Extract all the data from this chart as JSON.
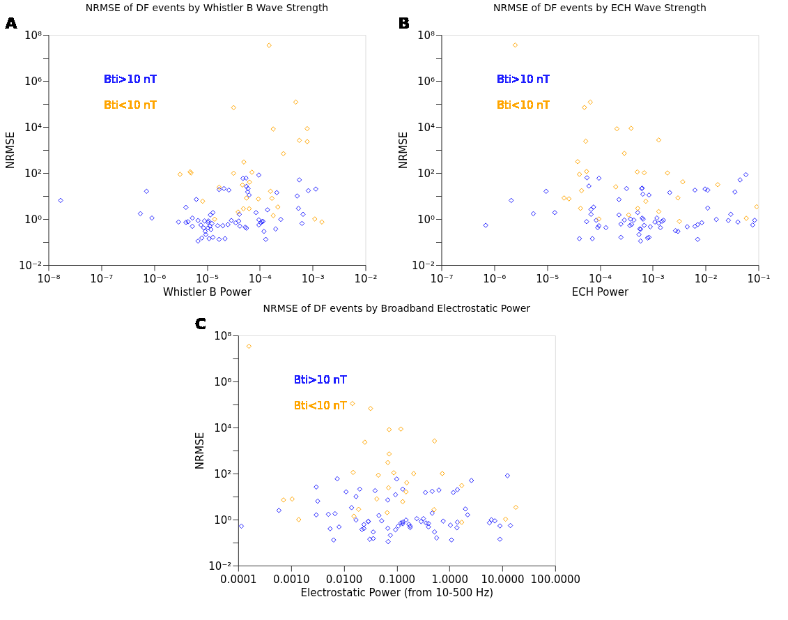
{
  "chart_data": [
    {
      "type": "scatter",
      "title": "NRMSE of DF events by Whistler B Wave Strength",
      "xlabel": "Whistler B Power",
      "ylabel": "NRMSE",
      "annotations": [
        "A"
      ],
      "log": "xy",
      "grid": false,
      "legend": "top left",
      "marker": "diamond",
      "xlim": [
        1e-08,
        0.01
      ],
      "ylim": [
        0.01,
        100000000.0
      ],
      "xticks": [
        {
          "value": 1e-08,
          "label": "10⁻⁸"
        },
        {
          "value": 1e-07,
          "label": "10⁻⁷"
        },
        {
          "value": 1e-06,
          "label": "10⁻⁶"
        },
        {
          "value": 1e-05,
          "label": "10⁻⁵"
        },
        {
          "value": 0.0001,
          "label": "10⁻⁴"
        },
        {
          "value": 0.001,
          "label": "10⁻³"
        },
        {
          "value": 0.01,
          "label": "10⁻²"
        }
      ],
      "yticks": [
        {
          "value": 0.01,
          "label": "10⁻²"
        },
        {
          "value": 0.1,
          "label": null
        },
        {
          "value": 1,
          "label": "10⁰"
        },
        {
          "value": 10,
          "label": null
        },
        {
          "value": 100,
          "label": "10²"
        },
        {
          "value": 1000.0,
          "label": null
        },
        {
          "value": 10000.0,
          "label": "10⁴"
        },
        {
          "value": 100000.0,
          "label": null
        },
        {
          "value": 1000000.0,
          "label": "10⁶"
        },
        {
          "value": 10000000.0,
          "label": null
        },
        {
          "value": 100000000.0,
          "label": "10⁸"
        }
      ],
      "series": [
        {
          "name": "Bti>10 nT",
          "color": "#2020ff",
          "x": [
            1.7e-08,
            5.5e-07,
            7.2e-07,
            9.1e-07,
            2.9e-06,
            4e-06,
            4e-06,
            4.4e-06,
            5.3e-06,
            5.3e-06,
            6.3e-06,
            6.8e-06,
            6.8e-06,
            7.7e-06,
            8e-06,
            8.7e-06,
            9e-06,
            9.3e-06,
            9.5e-06,
            1.05e-05,
            1.05e-05,
            1.07e-05,
            1.1e-05,
            1.14e-05,
            1.16e-05,
            1.19e-05,
            1.24e-05,
            1.3e-05,
            1.3e-05,
            1.6e-05,
            1.7e-05,
            1.7e-05,
            2e-05,
            2.1e-05,
            2.2e-05,
            2.5e-05,
            2.6e-05,
            2.9e-05,
            3.5e-05,
            4e-05,
            4.1e-05,
            4.2e-05,
            4.8e-05,
            5.5e-05,
            5.3e-05,
            5.6e-05,
            5.6e-05,
            5.9e-05,
            6e-05,
            6.3e-05,
            8.5e-05,
            9.6e-05,
            9.6e-05,
            9.6e-05,
            0.000105,
            0.00011,
            0.000115,
            0.00012,
            0.00013,
            0.00014,
            0.0002,
            0.00021,
            0.00025,
            0.00051,
            0.00054,
            0.00056,
            0.00063,
            0.00066,
            0.00083,
            0.00115
          ],
          "values": [
            6.4,
            1.7,
            16,
            1.1,
            0.74,
            3.2,
            0.71,
            0.76,
            1.1,
            0.48,
            7.1,
            0.11,
            0.86,
            0.55,
            0.15,
            0.41,
            0.82,
            0.29,
            0.21,
            0.71,
            0.41,
            0.82,
            0.14,
            0.49,
            1.5,
            0.35,
            0.64,
            1.9,
            0.16,
            0.51,
            19,
            0.13,
            0.51,
            21,
            0.14,
            0.57,
            18,
            0.86,
            0.68,
            0.81,
            1.6,
            0.49,
            58,
            60,
            0.44,
            0.4,
            26,
            15,
            21,
            11,
            1.9,
            81,
            0.92,
            0.55,
            0.68,
            0.77,
            0.79,
            0.29,
            0.13,
            2.5,
            0.37,
            14,
            0.96,
            10,
            2.9,
            50,
            0.64,
            1.6,
            17,
            20
          ]
        },
        {
          "name": "Bti<10 nT",
          "color": "#ffa500",
          "x": [
            0.00015,
            3.2e-05,
            0.00048,
            0.00018,
            0.00079,
            0.00056,
            0.00079,
            0.00028,
            5e-05,
            3.1e-06,
            4.8e-06,
            5e-06,
            3.2e-05,
            7.1e-05,
            6.4e-05,
            1.7e-05,
            4.7e-05,
            0.00016,
            5.6e-05,
            9.4e-05,
            0.00017,
            8.3e-06,
            0.00022,
            4.9e-05,
            6.3e-05,
            3.9e-05,
            1.4e-05,
            0.00018,
            0.0011,
            0.0015
          ],
          "values": [
            35000000.0,
            69000.0,
            120000.0,
            8100,
            8400,
            2600,
            2300,
            690,
            300,
            87,
            112,
            100,
            97,
            108,
            40,
            24,
            30,
            16,
            8.1,
            7.4,
            7.9,
            5.9,
            3.3,
            2.8,
            2.8,
            2.0,
            0.98,
            1.4,
            1.0,
            0.74
          ]
        }
      ]
    },
    {
      "type": "scatter",
      "title": "NRMSE of DF events by ECH Wave Strength",
      "xlabel": "ECH Power",
      "ylabel": "NRMSE",
      "annotations": [
        "B"
      ],
      "log": "xy",
      "grid": false,
      "legend": "top left",
      "marker": "diamond",
      "xlim": [
        1e-07,
        0.1
      ],
      "ylim": [
        0.01,
        100000000.0
      ],
      "xticks": [
        {
          "value": 1e-07,
          "label": "10⁻⁷"
        },
        {
          "value": 1e-06,
          "label": "10⁻⁶"
        },
        {
          "value": 1e-05,
          "label": "10⁻⁵"
        },
        {
          "value": 0.0001,
          "label": "10⁻⁴"
        },
        {
          "value": 0.001,
          "label": "10⁻³"
        },
        {
          "value": 0.01,
          "label": "10⁻²"
        },
        {
          "value": 0.1,
          "label": "10⁻¹"
        }
      ],
      "yticks": [
        {
          "value": 0.01,
          "label": "10⁻²"
        },
        {
          "value": 0.1,
          "label": null
        },
        {
          "value": 1,
          "label": "10⁰"
        },
        {
          "value": 10,
          "label": null
        },
        {
          "value": 100,
          "label": "10²"
        },
        {
          "value": 1000.0,
          "label": null
        },
        {
          "value": 10000.0,
          "label": "10⁴"
        },
        {
          "value": 100000.0,
          "label": null
        },
        {
          "value": 1000000.0,
          "label": "10⁶"
        },
        {
          "value": 10000000.0,
          "label": null
        },
        {
          "value": 100000000.0,
          "label": "10⁸"
        }
      ],
      "series": [
        {
          "name": "Bti>10 nT",
          "color": "#2020ff",
          "x": [
            6.9e-07,
            2.1e-06,
            5.5e-06,
            9.6e-06,
            1.4e-05,
            4.1e-05,
            5.6e-05,
            5.7e-05,
            6.2e-05,
            6.8e-05,
            6.8e-05,
            7.6e-05,
            7.2e-05,
            8.5e-05,
            9.1e-05,
            9.6e-05,
            9.6e-05,
            0.00013,
            0.00023,
            0.00023,
            0.00025,
            0.00025,
            0.00029,
            0.00032,
            0.00037,
            0.00038,
            0.0004,
            0.00044,
            0.00052,
            0.00055,
            0.00057,
            0.00059,
            0.00059,
            0.00062,
            0.00063,
            0.00063,
            0.00066,
            0.00065,
            0.00069,
            0.0008,
            0.00085,
            0.00085,
            0.0009,
            0.0011,
            0.0012,
            0.0013,
            0.0014,
            0.0015,
            0.0016,
            0.0021,
            0.0027,
            0.003,
            0.0045,
            0.0063,
            0.0063,
            0.0071,
            0.0071,
            0.0085,
            0.0098,
            0.011,
            0.011,
            0.016,
            0.027,
            0.03,
            0.036,
            0.041,
            0.045,
            0.058,
            0.078,
            0.085
          ],
          "values": [
            0.53,
            6.4,
            1.7,
            16,
            1.9,
            0.14,
            0.77,
            62,
            27,
            2.6,
            1.6,
            3.3,
            0.14,
            0.88,
            0.42,
            0.51,
            59,
            0.42,
            7.0,
            1.5,
            0.6,
            0.16,
            0.9,
            21,
            0.52,
            0.99,
            0.58,
            0.9,
            1.9,
            0.21,
            0.37,
            0.36,
            0.11,
            21,
            22,
            1.1,
            0.99,
            12,
            0.53,
            0.15,
            11,
            0.16,
            0.46,
            0.74,
            1.1,
            0.66,
            0.42,
            0.8,
            0.88,
            14,
            0.31,
            0.29,
            0.46,
            18,
            0.48,
            0.57,
            0.13,
            0.69,
            20,
            18,
            3.0,
            0.96,
            0.86,
            1.6,
            15,
            0.74,
            50,
            84,
            0.55,
            0.88
          ]
        },
        {
          "name": "Bti<10 nT",
          "color": "#ffa500",
          "x": [
            2.5e-06,
            5.1e-05,
            6.6e-05,
            0.00021,
            0.00039,
            5.4e-05,
            0.0013,
            0.00029,
            3.8e-05,
            5.6e-05,
            4.1e-05,
            0.00051,
            0.00069,
            0.0019,
            0.0037,
            0.0002,
            0.017,
            4.5e-05,
            2.1e-05,
            2.6e-05,
            0.003,
            0.00074,
            4.3e-05,
            0.00052,
            0.0013,
            0.00035,
            9.6e-05,
            0.0032,
            0.059,
            0.093
          ],
          "values": [
            36000000.0,
            70000.0,
            120000.0,
            8300,
            8700,
            2400,
            2700,
            710,
            310,
            116,
            87,
            111,
            102,
            100,
            41,
            25,
            31,
            17,
            8.2,
            7.5,
            8.2,
            5.9,
            2.9,
            2.9,
            2.1,
            1.5,
            1.0,
            0.79,
            1.07,
            3.4
          ]
        }
      ]
    },
    {
      "type": "scatter",
      "title": "NRMSE of DF events by Broadband Electrostatic Power",
      "xlabel": "Electrostatic Power (from 10-500 Hz)",
      "ylabel": "NRMSE",
      "annotations": [
        "C"
      ],
      "log": "xy",
      "grid": false,
      "legend": "top left",
      "marker": "diamond",
      "xlim": [
        0.0001,
        100
      ],
      "ylim": [
        0.01,
        100000000.0
      ],
      "xticks": [
        {
          "value": 0.0001,
          "label": "0.0001"
        },
        {
          "value": 0.001,
          "label": "0.0010"
        },
        {
          "value": 0.01,
          "label": "0.0100"
        },
        {
          "value": 0.1,
          "label": "0.1000"
        },
        {
          "value": 1,
          "label": "1.0000"
        },
        {
          "value": 10,
          "label": "10.0000"
        },
        {
          "value": 100,
          "label": "100.0000"
        }
      ],
      "yticks": [
        {
          "value": 0.01,
          "label": "10⁻²"
        },
        {
          "value": 0.1,
          "label": null
        },
        {
          "value": 1,
          "label": "10⁰"
        },
        {
          "value": 10,
          "label": null
        },
        {
          "value": 100,
          "label": "10²"
        },
        {
          "value": 1000.0,
          "label": null
        },
        {
          "value": 10000.0,
          "label": "10⁴"
        },
        {
          "value": 100000.0,
          "label": null
        },
        {
          "value": 1000000.0,
          "label": "10⁶"
        },
        {
          "value": 10000000.0,
          "label": null
        },
        {
          "value": 100000000.0,
          "label": "10⁸"
        }
      ],
      "series": [
        {
          "name": "Bti>10 nT",
          "color": "#2020ff",
          "x": [
            0.000115,
            0.00059,
            0.003,
            0.0032,
            0.003,
            0.0051,
            0.0055,
            0.0064,
            0.0068,
            0.0075,
            0.0081,
            0.011,
            0.014,
            0.017,
            0.017,
            0.02,
            0.022,
            0.024,
            0.024,
            0.029,
            0.029,
            0.031,
            0.036,
            0.036,
            0.039,
            0.046,
            0.052,
            0.068,
            0.068,
            0.069,
            0.076,
            0.095,
            0.095,
            0.1,
            0.107,
            0.12,
            0.13,
            0.13,
            0.13,
            0.15,
            0.17,
            0.18,
            0.18,
            0.24,
            0.29,
            0.32,
            0.35,
            0.36,
            0.4,
            0.4,
            0.47,
            0.47,
            0.52,
            0.57,
            0.63,
            0.76,
            1.04,
            1.09,
            1.18,
            1.38,
            1.41,
            1.41,
            2.0,
            2.2,
            2.6,
            5.7,
            6.2,
            7.2,
            9.0,
            9.0,
            12.5,
            14.2
          ],
          "values": [
            0.52,
            2.5,
            26,
            6.3,
            1.6,
            1.7,
            0.4,
            0.13,
            1.8,
            59,
            0.48,
            16,
            3.3,
            10,
            0.96,
            21,
            0.37,
            0.41,
            0.61,
            0.82,
            0.84,
            0.14,
            0.29,
            0.15,
            18,
            1.5,
            0.88,
            0.42,
            7.1,
            0.11,
            0.21,
            0.36,
            12,
            58,
            0.52,
            0.71,
            0.77,
            21,
            0.66,
            0.96,
            0.62,
            0.52,
            0.45,
            1.1,
            0.82,
            1.1,
            15,
            0.71,
            0.68,
            0.48,
            17,
            1.9,
            0.29,
            0.16,
            19,
            0.86,
            0.57,
            0.13,
            15,
            0.44,
            20,
            0.77,
            2.9,
            1.6,
            50,
            0.72,
            0.98,
            0.88,
            0.53,
            0.14,
            81,
            0.55
          ]
        },
        {
          "name": "Bti<10 nT",
          "color": "#ffa500",
          "x": [
            0.00016,
            0.00072,
            0.00105,
            0.0014,
            0.0145,
            0.032,
            0.025,
            0.015,
            0.019,
            0.0155,
            0.045,
            0.042,
            0.072,
            0.12,
            0.072,
            0.068,
            0.088,
            0.155,
            0.07,
            0.15,
            0.13,
            0.066,
            0.21,
            0.52,
            0.73,
            0.51,
            1.7,
            1.7,
            11.5,
            18
          ],
          "values": [
            34000000.0,
            7.1,
            7.8,
            1.0,
            110000.0,
            67000.0,
            2300,
            112,
            2.8,
            1.4,
            85,
            7.9,
            8100,
            8600,
            710,
            300,
            108,
            40,
            24,
            16,
            6.0,
            2.0,
            100,
            2600,
            100,
            2.7,
            30,
            0.76,
            1.05,
            3.4
          ]
        }
      ]
    }
  ]
}
